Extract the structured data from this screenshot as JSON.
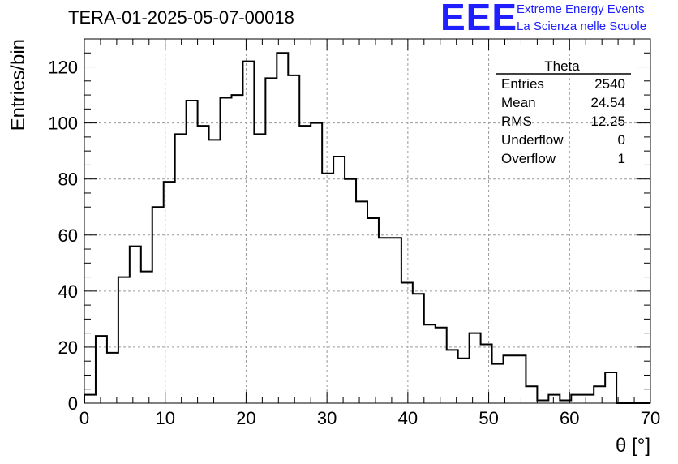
{
  "header": {
    "title": "TERA-01-2025-05-07-00018",
    "logo_text": "EEE",
    "logo_line1": "Extreme Energy Events",
    "logo_line2": "La Scienza nelle Scuole"
  },
  "stats": {
    "name": "Theta",
    "rows": [
      {
        "label": "Entries",
        "value": "2540"
      },
      {
        "label": "Mean",
        "value": "24.54"
      },
      {
        "label": "RMS",
        "value": "12.25"
      },
      {
        "label": "Underflow",
        "value": "0"
      },
      {
        "label": "Overflow",
        "value": "1"
      }
    ]
  },
  "chart_data": {
    "type": "bar",
    "histogram": true,
    "xlabel": "θ [°]",
    "ylabel": "Entries/bin",
    "xlim": [
      0,
      70
    ],
    "ylim": [
      0,
      130
    ],
    "grid": true,
    "x_ticks": [
      0,
      10,
      20,
      30,
      40,
      50,
      60,
      70
    ],
    "y_ticks": [
      0,
      20,
      40,
      60,
      80,
      100,
      120
    ],
    "bin_width": 1.4,
    "values": [
      3,
      24,
      18,
      45,
      56,
      47,
      70,
      79,
      96,
      108,
      99,
      94,
      109,
      110,
      122,
      96,
      116,
      125,
      117,
      99,
      100,
      82,
      88,
      80,
      72,
      66,
      59,
      59,
      43,
      39,
      28,
      27,
      19,
      16,
      25,
      21,
      14,
      17,
      17,
      6,
      1,
      3,
      1,
      3,
      3,
      6,
      11,
      0,
      0,
      0
    ]
  }
}
